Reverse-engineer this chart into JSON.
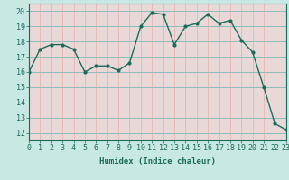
{
  "x": [
    0,
    1,
    2,
    3,
    4,
    5,
    6,
    7,
    8,
    9,
    10,
    11,
    12,
    13,
    14,
    15,
    16,
    17,
    18,
    19,
    20,
    21,
    22,
    23
  ],
  "y": [
    16.0,
    17.5,
    17.8,
    17.8,
    17.5,
    16.0,
    16.4,
    16.4,
    16.1,
    16.6,
    19.0,
    19.9,
    19.8,
    17.8,
    19.0,
    19.2,
    19.8,
    19.2,
    19.4,
    18.1,
    17.3,
    15.0,
    12.6,
    12.2
  ],
  "line_color": "#1a6b5a",
  "marker_color": "#1a6b5a",
  "bg_plot": "#e8f8f5",
  "bg_fig": "#c8e8e4",
  "grid_v_color": "#e8b8b8",
  "grid_h_color": "#8bbcba",
  "xlabel": "Humidex (Indice chaleur)",
  "ylim": [
    11.5,
    20.5
  ],
  "xlim": [
    0,
    23
  ],
  "yticks": [
    12,
    13,
    14,
    15,
    16,
    17,
    18,
    19,
    20
  ],
  "xticks": [
    0,
    1,
    2,
    3,
    4,
    5,
    6,
    7,
    8,
    9,
    10,
    11,
    12,
    13,
    14,
    15,
    16,
    17,
    18,
    19,
    20,
    21,
    22,
    23
  ],
  "xlabel_fontsize": 6.5,
  "tick_fontsize": 6.0,
  "linewidth": 1.0,
  "markersize": 2.0
}
